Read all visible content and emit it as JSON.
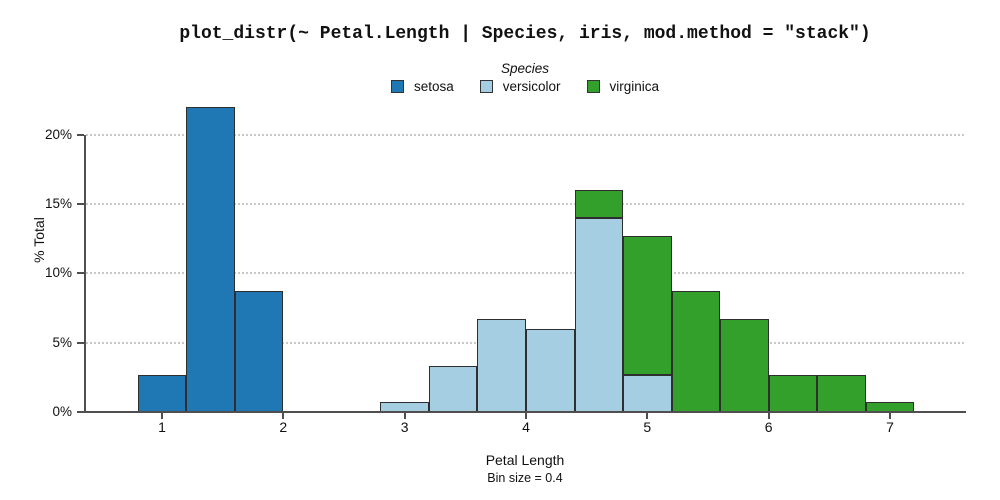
{
  "title": "plot_distr(~ Petal.Length | Species, iris, mod.method = \"stack\")",
  "legend": {
    "title": "Species",
    "entries": [
      {
        "label": "setosa",
        "color": "#1f78b4"
      },
      {
        "label": "versicolor",
        "color": "#a6cee3"
      },
      {
        "label": "virginica",
        "color": "#33a02c"
      }
    ]
  },
  "axes": {
    "y_label": "% Total",
    "x_label": "Petal Length",
    "x_sublabel": "Bin size = 0.4",
    "y_ticks": [
      {
        "value": 0,
        "label": "0%"
      },
      {
        "value": 5,
        "label": "5%"
      },
      {
        "value": 10,
        "label": "10%"
      },
      {
        "value": 15,
        "label": "15%"
      },
      {
        "value": 20,
        "label": "20%"
      }
    ],
    "x_ticks": [
      {
        "value": 1,
        "label": "1"
      },
      {
        "value": 2,
        "label": "2"
      },
      {
        "value": 3,
        "label": "3"
      },
      {
        "value": 4,
        "label": "4"
      },
      {
        "value": 5,
        "label": "5"
      },
      {
        "value": 6,
        "label": "6"
      },
      {
        "value": 7,
        "label": "7"
      }
    ]
  },
  "chart_data": {
    "type": "bar",
    "subtype": "stacked-histogram",
    "title": "plot_distr(~ Petal.Length | Species, iris, mod.method = \"stack\")",
    "xlabel": "Petal Length",
    "ylabel": "% Total",
    "bin_size": 0.4,
    "xlim": [
      0.37,
      7.7
    ],
    "ylim_pct": [
      0,
      22.5
    ],
    "grid": "horizontal-dotted",
    "legend_position": "top-center",
    "series_order": [
      "setosa",
      "versicolor",
      "virginica"
    ],
    "colors": {
      "setosa": "#1f78b4",
      "versicolor": "#a6cee3",
      "virginica": "#33a02c"
    },
    "bins": [
      {
        "x0": 0.8,
        "x1": 1.2,
        "segments": [
          {
            "species": "setosa",
            "pct": 2.7
          }
        ]
      },
      {
        "x0": 1.2,
        "x1": 1.6,
        "segments": [
          {
            "species": "setosa",
            "pct": 22.0
          }
        ]
      },
      {
        "x0": 1.6,
        "x1": 2.0,
        "segments": [
          {
            "species": "setosa",
            "pct": 8.7
          }
        ]
      },
      {
        "x0": 2.8,
        "x1": 3.2,
        "segments": [
          {
            "species": "versicolor",
            "pct": 0.7
          }
        ]
      },
      {
        "x0": 3.2,
        "x1": 3.6,
        "segments": [
          {
            "species": "versicolor",
            "pct": 3.3
          }
        ]
      },
      {
        "x0": 3.6,
        "x1": 4.0,
        "segments": [
          {
            "species": "versicolor",
            "pct": 6.7
          }
        ]
      },
      {
        "x0": 4.0,
        "x1": 4.4,
        "segments": [
          {
            "species": "versicolor",
            "pct": 6.0
          }
        ]
      },
      {
        "x0": 4.4,
        "x1": 4.8,
        "segments": [
          {
            "species": "versicolor",
            "pct": 14.0
          },
          {
            "species": "virginica",
            "pct": 2.0
          }
        ]
      },
      {
        "x0": 4.8,
        "x1": 5.2,
        "segments": [
          {
            "species": "versicolor",
            "pct": 2.7
          },
          {
            "species": "virginica",
            "pct": 10.0
          }
        ]
      },
      {
        "x0": 5.2,
        "x1": 5.6,
        "segments": [
          {
            "species": "virginica",
            "pct": 8.7
          }
        ]
      },
      {
        "x0": 5.6,
        "x1": 6.0,
        "segments": [
          {
            "species": "virginica",
            "pct": 6.7
          }
        ]
      },
      {
        "x0": 6.0,
        "x1": 6.4,
        "segments": [
          {
            "species": "virginica",
            "pct": 2.7
          }
        ]
      },
      {
        "x0": 6.4,
        "x1": 6.8,
        "segments": [
          {
            "species": "virginica",
            "pct": 2.7
          }
        ]
      },
      {
        "x0": 6.8,
        "x1": 7.2,
        "segments": [
          {
            "species": "virginica",
            "pct": 0.7
          }
        ]
      }
    ]
  },
  "style": {
    "bar_border": "#2e2e2e",
    "axis_color": "#4f4f4f",
    "grid_color": "#c9c9c9",
    "text_color": "#111111",
    "background": "#ffffff"
  }
}
